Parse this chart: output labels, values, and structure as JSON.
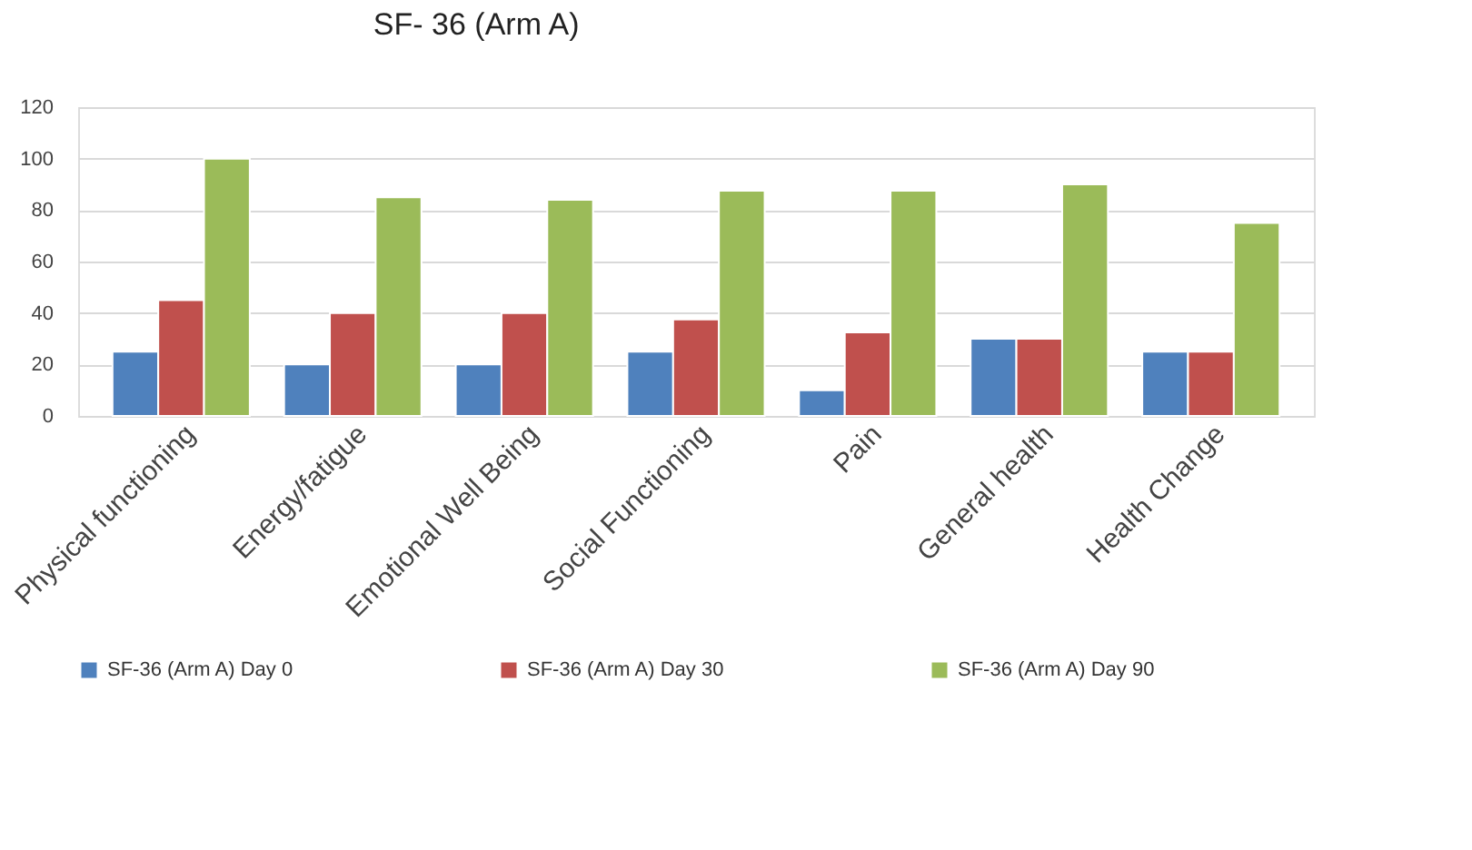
{
  "chart_data": {
    "type": "bar",
    "title": "SF- 36 (Arm A)",
    "categories": [
      "Physical functioning",
      "Energy/fatigue",
      "Emotional Well Being",
      "Social Functioning",
      "Pain",
      "General health",
      "Health Change"
    ],
    "series": [
      {
        "name": "SF-36 (Arm A) Day 0",
        "color": "#4f81bd",
        "values": [
          25,
          20,
          20,
          25,
          10,
          30,
          25
        ]
      },
      {
        "name": "SF-36 (Arm A) Day 30",
        "color": "#c0504d",
        "values": [
          45,
          40,
          40,
          37.5,
          32.5,
          30,
          25
        ]
      },
      {
        "name": "SF-36 (Arm A) Day 90",
        "color": "#9bbb59",
        "values": [
          100,
          85,
          84,
          87.5,
          87.5,
          90,
          75
        ]
      }
    ],
    "ylim": [
      0,
      120
    ],
    "yticks": [
      0,
      20,
      40,
      60,
      80,
      100,
      120
    ],
    "grid": "y",
    "legend": "bottom"
  }
}
